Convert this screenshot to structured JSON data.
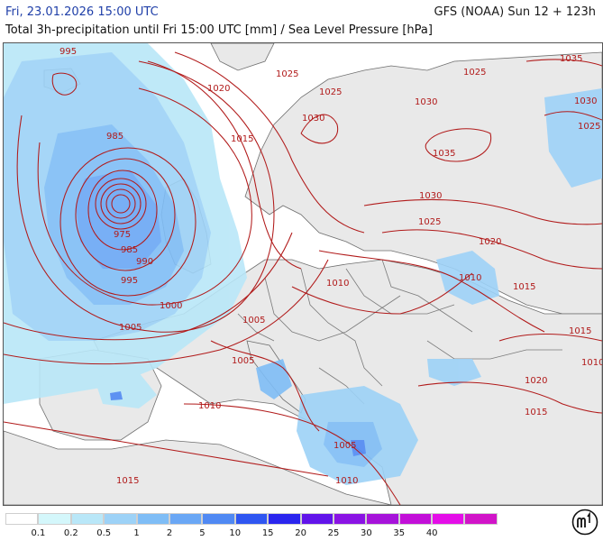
{
  "header": {
    "valid_time": "Fri, 23.01.2026 15:00 UTC",
    "model_run": "GFS (NOAA) Sun 12 + 123h",
    "subtitle": "Total 3h-precipitation until Fri 15:00 UTC [mm] / Sea Level Pressure [hPa]"
  },
  "isobar_labels": [
    "995",
    "1020",
    "1025",
    "1035",
    "1025",
    "1030",
    "1030",
    "1025",
    "1015",
    "985",
    "1030",
    "1035",
    "1025",
    "1030",
    "975",
    "985",
    "990",
    "1025",
    "995",
    "1020",
    "1010",
    "1010",
    "1015",
    "1000",
    "1005",
    "1015",
    "1005",
    "1005",
    "1010",
    "1020",
    "1010",
    "1015",
    "1005",
    "1015",
    "1010"
  ],
  "legend": {
    "colors": [
      "#ffffff",
      "#d4f7fb",
      "#b9e7f8",
      "#9dd2f7",
      "#7fbdf6",
      "#6aa7f5",
      "#5089f3",
      "#2f56f1",
      "#2a25ee",
      "#6114ea",
      "#8a13e4",
      "#a613da",
      "#c20fd8",
      "#e40ee8",
      "#d114c8"
    ],
    "ticks": [
      "0.1",
      "0.2",
      "0.5",
      "1",
      "2",
      "5",
      "10",
      "15",
      "20",
      "25",
      "30",
      "35",
      "40"
    ]
  }
}
